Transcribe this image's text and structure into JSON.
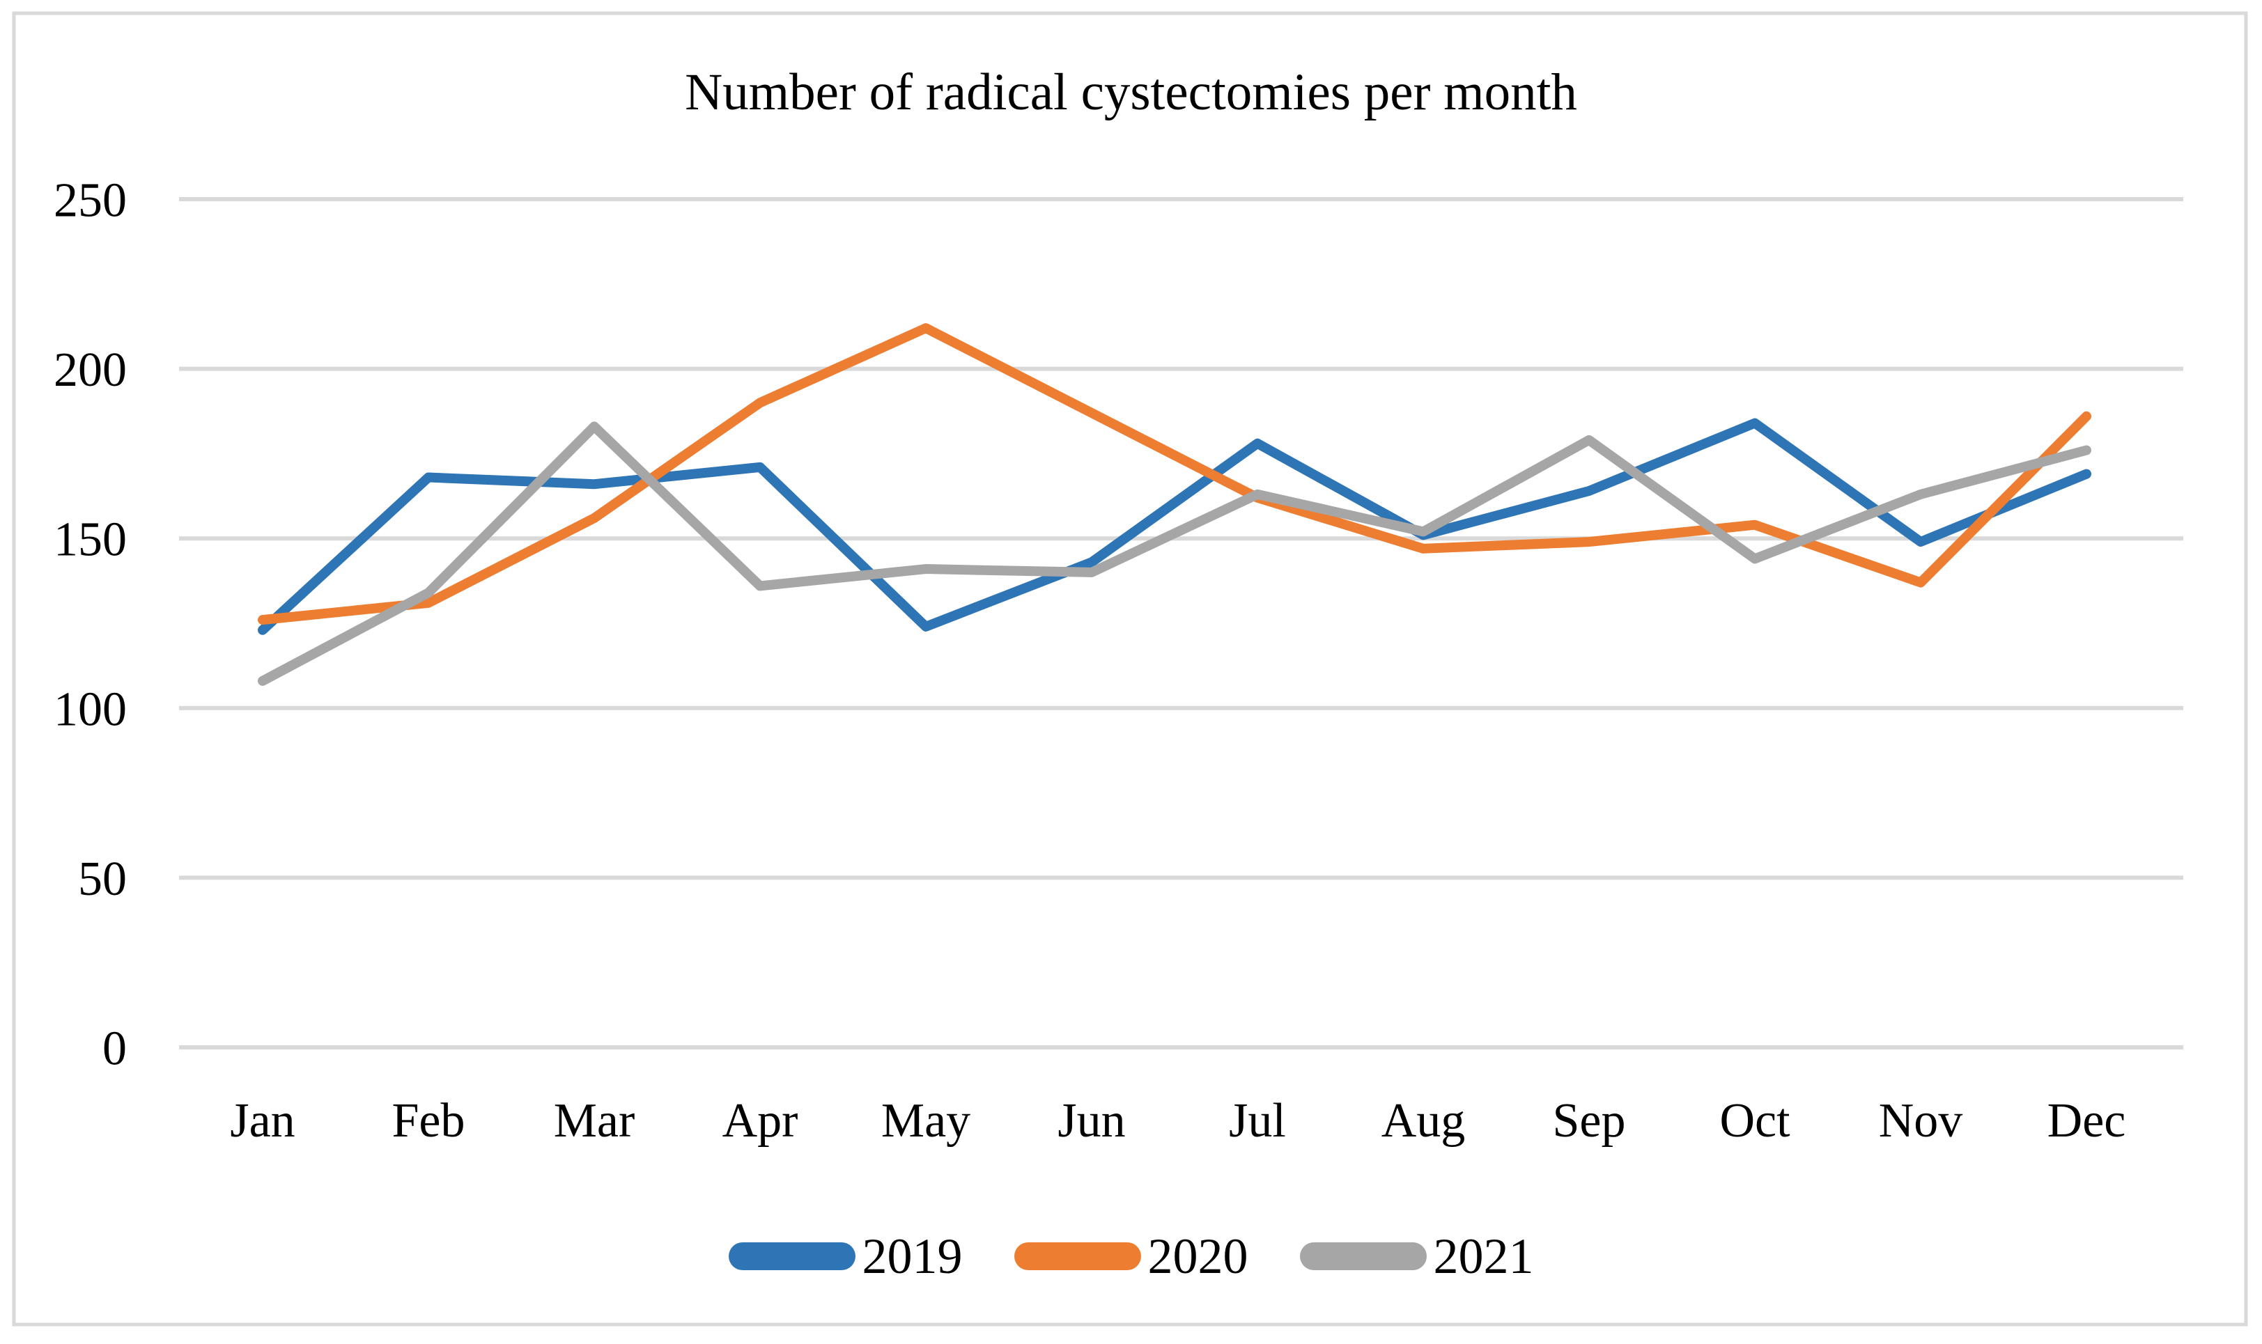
{
  "chart_data": {
    "type": "line",
    "title": "Number of radical cystectomies per month",
    "xlabel": "",
    "ylabel": "",
    "categories": [
      "Jan",
      "Feb",
      "Mar",
      "Apr",
      "May",
      "Jun",
      "Jul",
      "Aug",
      "Sep",
      "Oct",
      "Nov",
      "Dec"
    ],
    "series": [
      {
        "name": "2019",
        "color": "#2E75B6",
        "values": [
          123,
          168,
          166,
          171,
          124,
          143,
          178,
          151,
          164,
          184,
          149,
          169
        ]
      },
      {
        "name": "2020",
        "color": "#ED7D31",
        "values": [
          126,
          131,
          156,
          190,
          212,
          187,
          162,
          147,
          149,
          154,
          137,
          186
        ]
      },
      {
        "name": "2021",
        "color": "#A6A6A6",
        "values": [
          108,
          134,
          183,
          136,
          141,
          140,
          163,
          152,
          179,
          144,
          163,
          176
        ]
      }
    ],
    "ylim": [
      0,
      250
    ],
    "yticks": [
      0,
      50,
      100,
      150,
      200,
      250
    ],
    "grid": "horizontal",
    "legend_position": "bottom"
  },
  "style_colors": {
    "gridline": "#D9D9D9",
    "frame_border": "#D9D9D9",
    "text": "#000000",
    "background": "#FFFFFF"
  }
}
